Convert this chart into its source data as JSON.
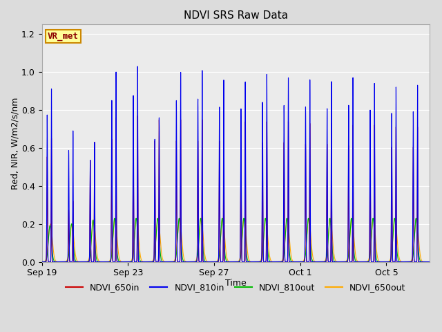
{
  "title": "NDVI SRS Raw Data",
  "xlabel": "Time",
  "ylabel": "Red, NIR, W/m2/s/nm",
  "ylim": [
    0.0,
    1.25
  ],
  "yticks": [
    0.0,
    0.2,
    0.4,
    0.6,
    0.8,
    1.0,
    1.2
  ],
  "bg_color": "#dcdcdc",
  "plot_bg_color": "#ebebeb",
  "series_colors": {
    "NDVI_650in": "#cc0000",
    "NDVI_810in": "#0000ee",
    "NDVI_810out": "#00bb00",
    "NDVI_650out": "#ffaa00"
  },
  "annotation_text": "VR_met",
  "annotation_bg": "#ffff99",
  "annotation_border": "#cc8800",
  "annotation_text_color": "#8b0000",
  "num_cycles": 18,
  "spike_period": 1.0,
  "x_tick_labels": [
    "Sep 19",
    "Sep 23",
    "Sep 27",
    "Oct 1",
    "Oct 5"
  ],
  "x_tick_positions": [
    0,
    4,
    8,
    12,
    16
  ],
  "xlim_end": 18,
  "blue_peaks": [
    0.91,
    0.69,
    0.63,
    1.0,
    1.03,
    0.76,
    1.0,
    1.01,
    0.96,
    0.95,
    0.99,
    0.97,
    0.96,
    0.95,
    0.97,
    0.94,
    0.92,
    0.93
  ],
  "red_peaks": [
    0.65,
    0.32,
    0.63,
    0.76,
    0.77,
    0.75,
    0.75,
    0.75,
    0.75,
    0.74,
    0.74,
    0.74,
    0.73,
    0.73,
    0.72,
    0.72,
    0.71,
    0.71
  ],
  "green_peaks": [
    0.19,
    0.2,
    0.22,
    0.23,
    0.23,
    0.23,
    0.23,
    0.23,
    0.23,
    0.23,
    0.23,
    0.23,
    0.23,
    0.23,
    0.23,
    0.23,
    0.23,
    0.23
  ],
  "orange_peaks": [
    0.2,
    0.2,
    0.22,
    0.23,
    0.23,
    0.23,
    0.23,
    0.23,
    0.23,
    0.23,
    0.23,
    0.23,
    0.23,
    0.23,
    0.23,
    0.23,
    0.23,
    0.23
  ]
}
